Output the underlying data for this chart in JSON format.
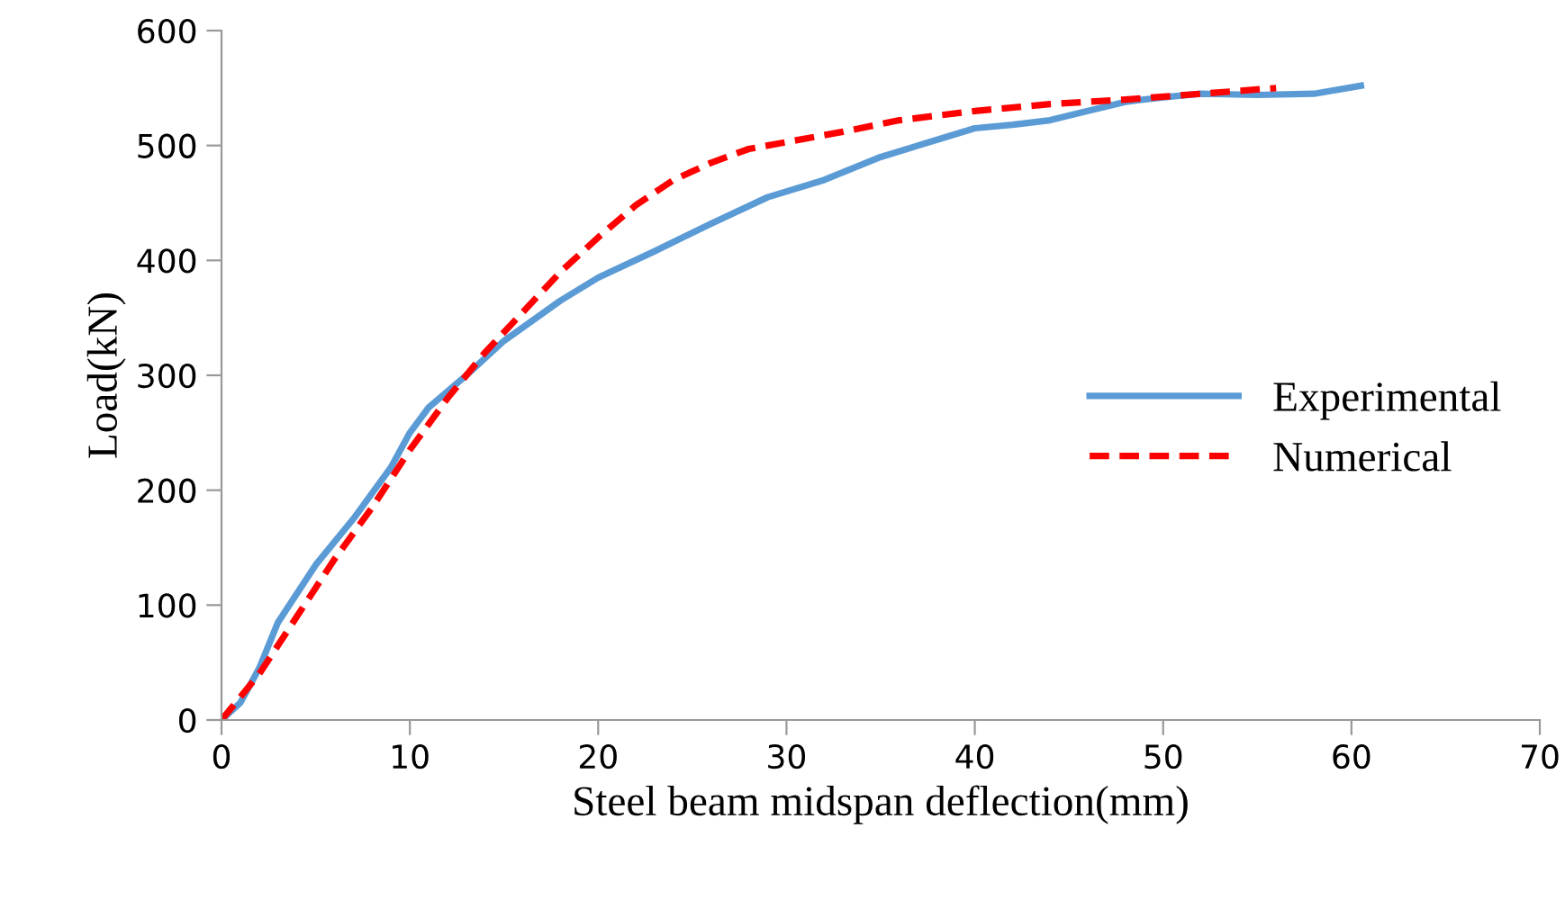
{
  "chart_data": {
    "type": "line",
    "xlabel": "Steel beam midspan deflection(mm)",
    "ylabel": "Load(kN)",
    "xlim": [
      0,
      70
    ],
    "xticks": [
      0,
      10,
      20,
      30,
      40,
      50,
      60,
      70
    ],
    "ylim": [
      0,
      600
    ],
    "yticks": [
      0,
      100,
      200,
      300,
      400,
      500,
      600
    ],
    "grid": false,
    "legend": "right",
    "series": [
      {
        "name": "Experimental",
        "color": "#5b9bd5",
        "line_style": "solid",
        "x": [
          0,
          1,
          2,
          3,
          5,
          7,
          9,
          10,
          11,
          13,
          15,
          18,
          20,
          23,
          26,
          29,
          32,
          35,
          38,
          40,
          42,
          44,
          46,
          48,
          50,
          52,
          55,
          58,
          60.5
        ],
        "values": [
          0,
          15,
          45,
          85,
          135,
          175,
          220,
          250,
          272,
          300,
          330,
          365,
          385,
          408,
          432,
          455,
          470,
          490,
          505,
          515,
          518,
          522,
          530,
          538,
          542,
          545,
          544,
          545,
          552
        ]
      },
      {
        "name": "Numerical",
        "color": "#ff0000",
        "line_style": "dashed",
        "x": [
          0,
          2,
          4,
          6,
          8,
          10,
          12,
          14,
          16,
          18,
          20,
          22,
          24,
          26,
          28,
          30,
          33,
          36,
          40,
          44,
          48,
          52,
          56
        ],
        "values": [
          0,
          40,
          90,
          140,
          185,
          235,
          280,
          320,
          355,
          390,
          420,
          448,
          470,
          485,
          497,
          503,
          512,
          522,
          530,
          536,
          540,
          545,
          550
        ]
      }
    ]
  }
}
